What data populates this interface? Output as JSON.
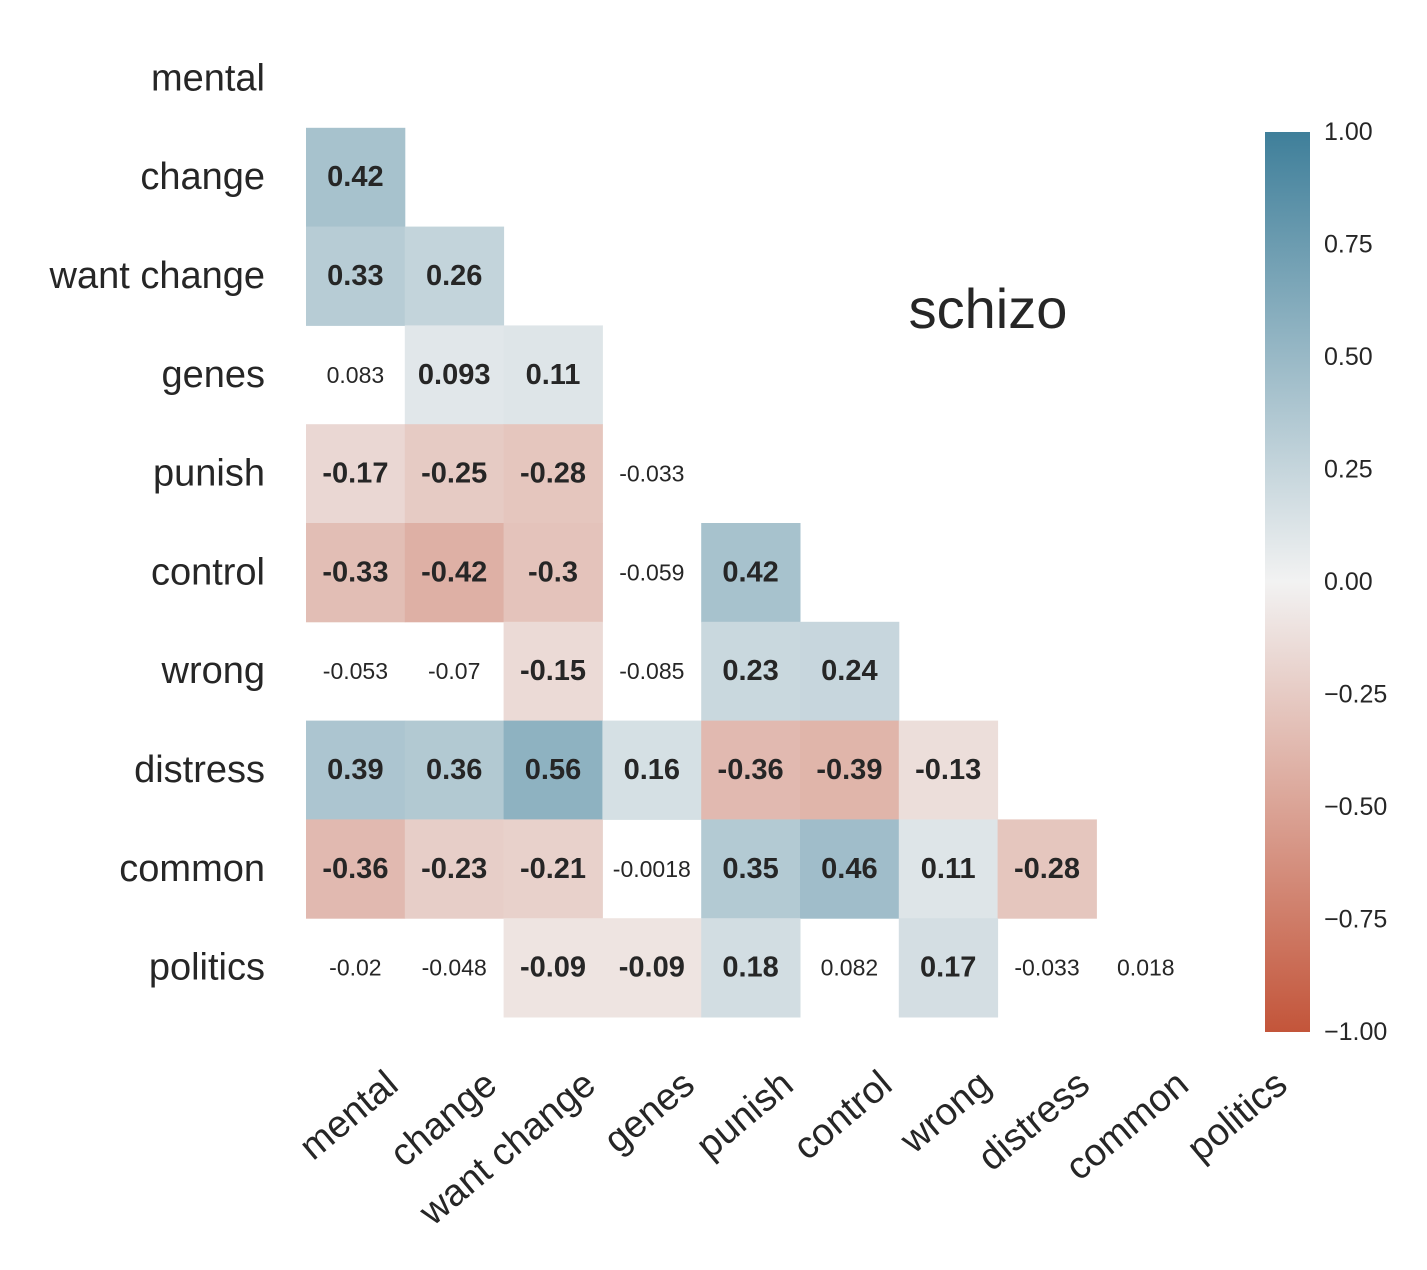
{
  "chart_data": {
    "type": "heatmap",
    "title": "",
    "annotation": "schizo",
    "variables": [
      "mental",
      "change",
      "want change",
      "genes",
      "punish",
      "control",
      "wrong",
      "distress",
      "common",
      "politics"
    ],
    "mask": "lower-triangle (diagonal and upper triangle hidden)",
    "values": [
      [
        null,
        null,
        null,
        null,
        null,
        null,
        null,
        null,
        null,
        null
      ],
      [
        0.42,
        null,
        null,
        null,
        null,
        null,
        null,
        null,
        null,
        null
      ],
      [
        0.33,
        0.26,
        null,
        null,
        null,
        null,
        null,
        null,
        null,
        null
      ],
      [
        0.083,
        0.093,
        0.11,
        null,
        null,
        null,
        null,
        null,
        null,
        null
      ],
      [
        -0.17,
        -0.25,
        -0.28,
        -0.033,
        null,
        null,
        null,
        null,
        null,
        null
      ],
      [
        -0.33,
        -0.42,
        -0.3,
        -0.059,
        0.42,
        null,
        null,
        null,
        null,
        null
      ],
      [
        -0.053,
        -0.07,
        -0.15,
        -0.085,
        0.23,
        0.24,
        null,
        null,
        null,
        null
      ],
      [
        0.39,
        0.36,
        0.56,
        0.16,
        -0.36,
        -0.39,
        -0.13,
        null,
        null,
        null
      ],
      [
        -0.36,
        -0.23,
        -0.21,
        -0.0018,
        0.35,
        0.46,
        0.11,
        -0.28,
        null,
        null
      ],
      [
        -0.02,
        -0.048,
        -0.09,
        -0.09,
        0.18,
        0.082,
        0.17,
        -0.033,
        0.018,
        null
      ]
    ],
    "cell_text": [
      [
        null,
        null,
        null,
        null,
        null,
        null,
        null,
        null,
        null,
        null
      ],
      [
        "0.42",
        null,
        null,
        null,
        null,
        null,
        null,
        null,
        null,
        null
      ],
      [
        "0.33",
        "0.26",
        null,
        null,
        null,
        null,
        null,
        null,
        null,
        null
      ],
      [
        "0.083",
        "0.093",
        "0.11",
        null,
        null,
        null,
        null,
        null,
        null,
        null
      ],
      [
        "-0.17",
        "-0.25",
        "-0.28",
        "-0.033",
        null,
        null,
        null,
        null,
        null,
        null
      ],
      [
        "-0.33",
        "-0.42",
        "-0.3",
        "-0.059",
        "0.42",
        null,
        null,
        null,
        null,
        null
      ],
      [
        "-0.053",
        "-0.07",
        "-0.15",
        "-0.085",
        "0.23",
        "0.24",
        null,
        null,
        null,
        null
      ],
      [
        "0.39",
        "0.36",
        "0.56",
        "0.16",
        "-0.36",
        "-0.39",
        "-0.13",
        null,
        null,
        null
      ],
      [
        "-0.36",
        "-0.23",
        "-0.21",
        "-0.0018",
        "0.35",
        "0.46",
        "0.11",
        "-0.28",
        null,
        null
      ],
      [
        "-0.02",
        "-0.048",
        "-0.09",
        "-0.09",
        "0.18",
        "0.082",
        "0.17",
        "-0.033",
        "0.018",
        null
      ]
    ],
    "significant": [
      [
        false,
        false,
        false,
        false,
        false,
        false,
        false,
        false,
        false,
        false
      ],
      [
        true,
        false,
        false,
        false,
        false,
        false,
        false,
        false,
        false,
        false
      ],
      [
        true,
        true,
        false,
        false,
        false,
        false,
        false,
        false,
        false,
        false
      ],
      [
        false,
        true,
        true,
        false,
        false,
        false,
        false,
        false,
        false,
        false
      ],
      [
        true,
        true,
        true,
        false,
        false,
        false,
        false,
        false,
        false,
        false
      ],
      [
        true,
        true,
        true,
        false,
        true,
        false,
        false,
        false,
        false,
        false
      ],
      [
        false,
        false,
        true,
        false,
        true,
        true,
        false,
        false,
        false,
        false
      ],
      [
        true,
        true,
        true,
        true,
        true,
        true,
        true,
        false,
        false,
        false
      ],
      [
        true,
        true,
        true,
        false,
        true,
        true,
        true,
        true,
        false,
        false
      ],
      [
        false,
        false,
        true,
        true,
        true,
        false,
        true,
        false,
        false,
        false
      ]
    ],
    "colorbar": {
      "range": [
        -1,
        1
      ],
      "ticks": [
        1.0,
        0.75,
        0.5,
        0.25,
        0.0,
        -0.25,
        -0.5,
        -0.75,
        -1.0
      ],
      "tick_labels": [
        "1.00",
        "0.75",
        "0.50",
        "0.25",
        "0.00",
        "−0.25",
        "−0.50",
        "−0.75",
        "−1.00"
      ],
      "colors": {
        "negative": "#c3553a",
        "center": "#f2f2f2",
        "positive": "#3f7f9a"
      }
    },
    "grid": false,
    "legend": "colorbar right"
  }
}
